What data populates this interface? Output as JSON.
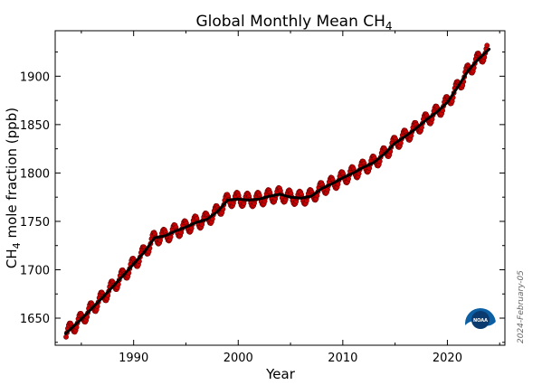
{
  "chart_data": {
    "type": "line",
    "title": "Global Monthly Mean CH",
    "title_sub": "4",
    "xlabel": "Year",
    "ylabel_pre": "CH",
    "ylabel_sub": "4",
    "ylabel_post": " mole fraction (ppb)",
    "xlim": [
      1982.5,
      2025.5
    ],
    "ylim": [
      1622,
      1947
    ],
    "xticks": [
      1990,
      2000,
      2010,
      2020
    ],
    "yticks": [
      1650,
      1700,
      1750,
      1800,
      1850,
      1900
    ],
    "grid": false,
    "date_stamp": "2024-February-05",
    "logo_text": "NOAA",
    "series": [
      {
        "role": "monthly-mean",
        "marker": "circle",
        "color": "#cc0000",
        "edge_color": "#660000"
      },
      {
        "role": "trend",
        "color": "#000000",
        "x": [
          1983.5,
          1985,
          1987,
          1989,
          1990,
          1991,
          1992,
          1993,
          1994,
          1995,
          1996,
          1997,
          1998,
          1999,
          2000,
          2001,
          2002,
          2003,
          2004,
          2005,
          2006,
          2007,
          2008,
          2009,
          2010,
          2011,
          2012,
          2013,
          2014,
          2015,
          2016,
          2017,
          2018,
          2019,
          2020,
          2021,
          2022,
          2023,
          2024
        ],
        "y": [
          1634,
          1649,
          1671,
          1694,
          1706,
          1718,
          1733,
          1735,
          1740,
          1744,
          1749,
          1752,
          1760,
          1772,
          1773,
          1772,
          1773,
          1776,
          1778,
          1775,
          1774,
          1776,
          1784,
          1789,
          1795,
          1800,
          1806,
          1811,
          1820,
          1831,
          1838,
          1846,
          1855,
          1863,
          1873,
          1889,
          1906,
          1918,
          1928
        ]
      }
    ]
  },
  "colors": {
    "marker_fill": "#cc0000",
    "marker_edge": "#660000",
    "trend": "#000000",
    "logo_outer": "#0d5fa3",
    "logo_inner": "#0a3a6e"
  }
}
